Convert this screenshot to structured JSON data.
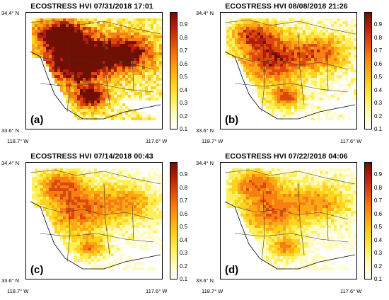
{
  "figure": {
    "panels": [
      {
        "title": "ECOSTRESS HVI 07/31/2018 17:01",
        "label": "(a)",
        "intensity": 1.0
      },
      {
        "title": "ECOSTRESS HVI 08/08/2018 21:26",
        "label": "(b)",
        "intensity": 0.68
      },
      {
        "title": "ECOSTRESS HVI 07/14/2018 00:43",
        "label": "(c)",
        "intensity": 0.55
      },
      {
        "title": "ECOSTRESS HVI 07/22/2018 04:06",
        "label": "(d)",
        "intensity": 0.52
      }
    ],
    "axes": {
      "lat_top": "34.4° N",
      "lat_bottom": "33.6° N",
      "lon_left": "118.7° W",
      "lon_right": "117.6° W"
    },
    "colorbar": {
      "ticks": [
        "0.9",
        "0.8",
        "0.7",
        "0.6",
        "0.5",
        "0.4",
        "0.3",
        "0.2",
        "0.1"
      ],
      "range": [
        0.1,
        1.0
      ],
      "colors": [
        "#ffffff",
        "#fffbc0",
        "#ffef5a",
        "#ffd21e",
        "#ffa816",
        "#f67e13",
        "#db4a0c",
        "#b41e08",
        "#701005"
      ]
    }
  }
}
